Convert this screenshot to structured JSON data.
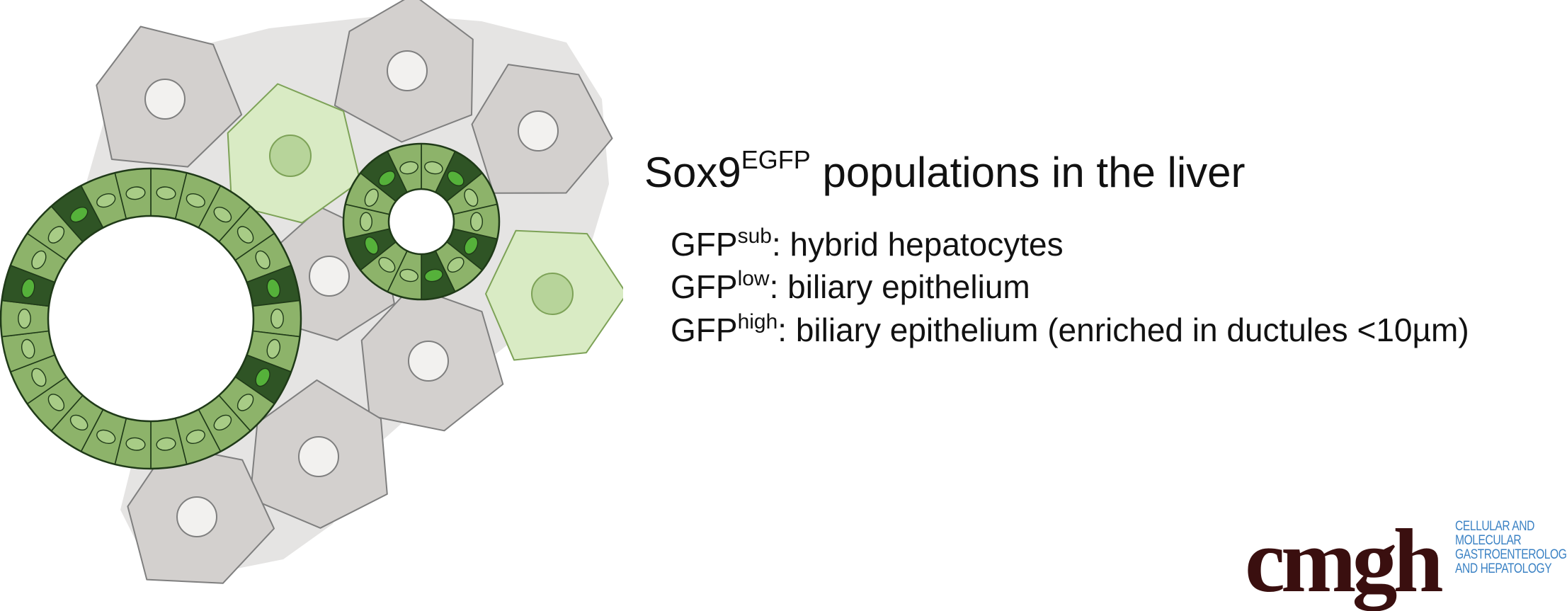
{
  "title": {
    "main": "Sox9",
    "superscript": "EGFP",
    "rest": " populations in the liver"
  },
  "populations": [
    {
      "prefix": "GFP",
      "superscript": "sub",
      "description": ": hybrid hepatocytes"
    },
    {
      "prefix": "GFP",
      "superscript": "low",
      "description": ": biliary epithelium"
    },
    {
      "prefix": "GFP",
      "superscript": "high",
      "description": ": biliary epithelium (enriched in ductules <10µm)"
    }
  ],
  "logo": {
    "wordmark": "cmgh",
    "journal_lines": [
      "CELLULAR AND",
      "MOLECULAR",
      "GASTROENTEROLOGY",
      "AND HEPATOLOGY"
    ]
  },
  "colors": {
    "hepatocyte_fill": "#d3d0ce",
    "hepatocyte_stroke": "#7f7f7f",
    "background_tissue": "#e5e4e3",
    "nucleus_fill": "#f2f1ef",
    "gfp_sub_fill": "#d9ebc4",
    "gfp_sub_nucleus": "#b7d49a",
    "gfp_low_fill": "#8db36a",
    "gfp_high_fill": "#2f5425",
    "gfp_high_nucleus": "#55b13a",
    "logo_brown": "#3a0f0f",
    "logo_blue": "#3b82c4"
  }
}
